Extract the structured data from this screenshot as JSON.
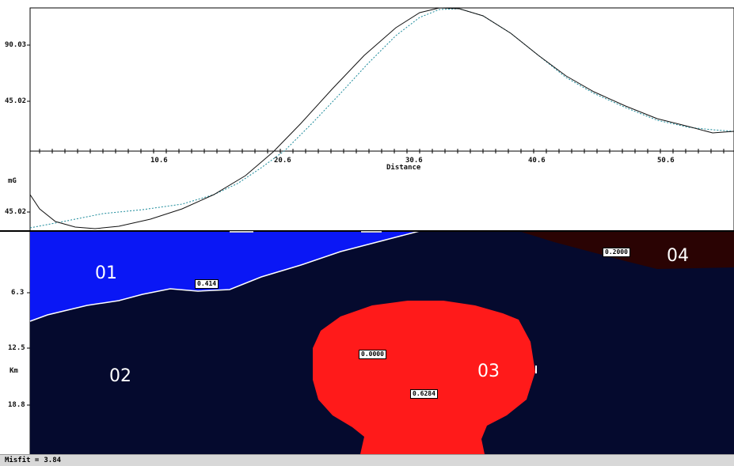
{
  "gravity_profile": {
    "y_ticks": [
      "90.03",
      "45.02",
      "45.02"
    ],
    "y_unit": "mG",
    "x_ticks": [
      "10.6",
      "20.6",
      "30.6",
      "40.6",
      "50.6"
    ],
    "x_label": "Distance"
  },
  "section": {
    "depth_ticks": [
      "6.3",
      "12.5",
      "18.8"
    ],
    "depth_unit": "Km",
    "regions": [
      {
        "id": "01",
        "value": "0.414",
        "color": "#0a17f5"
      },
      {
        "id": "02",
        "value": "0.0000",
        "color": "#050a2e"
      },
      {
        "id": "03",
        "value": "0.6284",
        "color": "#ff1a1a"
      },
      {
        "id": "04",
        "value": "0.2000",
        "color": "#2a0303"
      }
    ]
  },
  "status": {
    "misfit_label": "Misfit =",
    "misfit_value": "3.84"
  },
  "colors": {
    "observed_curve": "#111111",
    "calculated_curve": "#1a8a9a",
    "background": "#ffffff"
  }
}
